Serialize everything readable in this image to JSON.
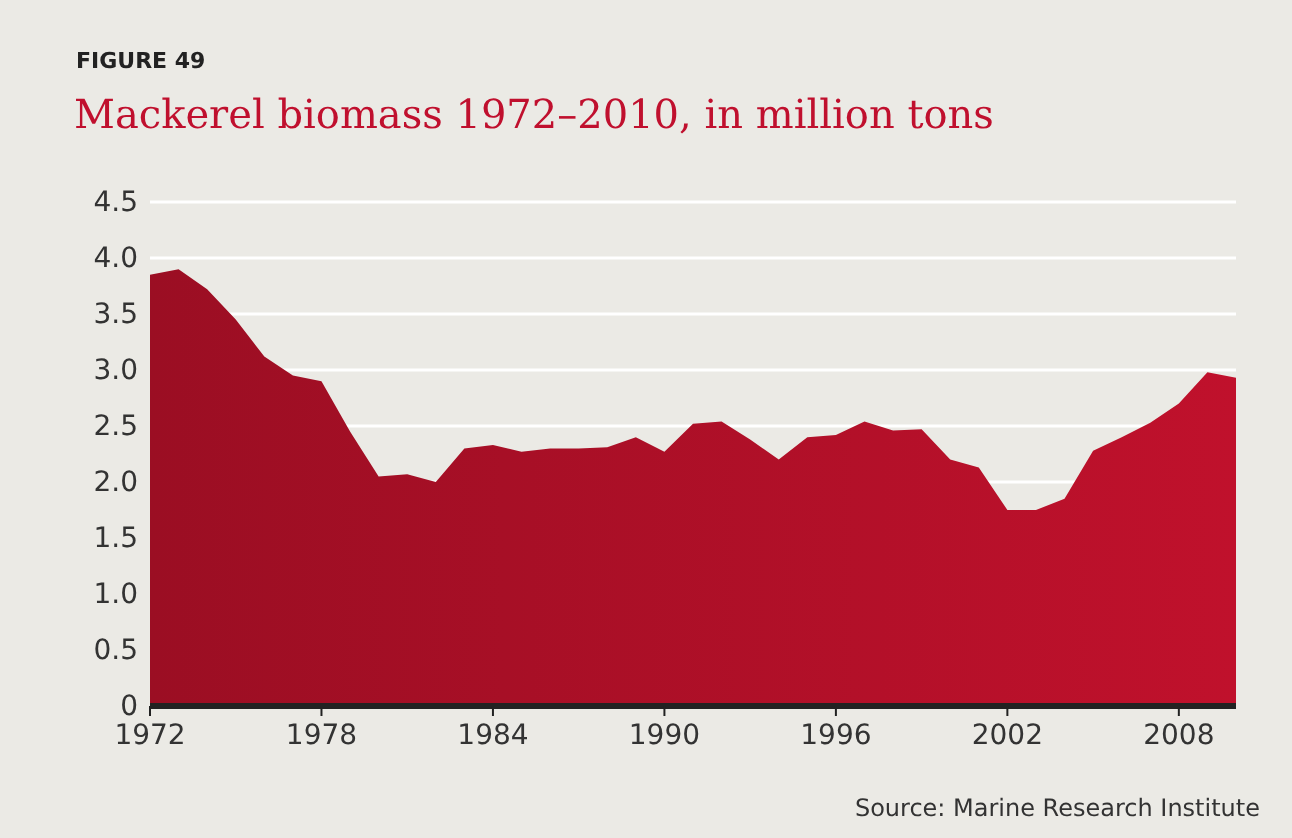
{
  "chart_data": {
    "type": "area",
    "subtitle": "FIGURE 49",
    "title": "Mackerel biomass 1972–2010, in million tons",
    "x": [
      1972,
      1973,
      1974,
      1975,
      1976,
      1977,
      1978,
      1979,
      1980,
      1981,
      1982,
      1983,
      1984,
      1985,
      1986,
      1987,
      1988,
      1989,
      1990,
      1991,
      1992,
      1993,
      1994,
      1995,
      1996,
      1997,
      1998,
      1999,
      2000,
      2001,
      2002,
      2003,
      2004,
      2005,
      2006,
      2007,
      2008,
      2009,
      2010
    ],
    "series": [
      {
        "color": "#b01028",
        "values": [
          3.85,
          3.9,
          3.72,
          3.45,
          3.12,
          2.95,
          2.9,
          2.45,
          2.05,
          2.07,
          2.0,
          2.3,
          2.33,
          2.27,
          2.3,
          2.3,
          2.31,
          2.4,
          2.27,
          2.52,
          2.54,
          2.38,
          2.2,
          2.4,
          2.42,
          2.54,
          2.46,
          2.47,
          2.2,
          2.13,
          1.75,
          1.75,
          1.85,
          2.28,
          2.4,
          2.53,
          2.7,
          2.98,
          2.93
        ]
      }
    ],
    "xlim": [
      1972,
      2010
    ],
    "xticks": [
      1972,
      1978,
      1984,
      1990,
      1996,
      2002,
      2008
    ],
    "ylim": [
      0,
      4.5
    ],
    "yticks": [
      {
        "value": 0,
        "label": "0"
      },
      {
        "value": 0.5,
        "label": "0.5"
      },
      {
        "value": 1,
        "label": "1.0"
      },
      {
        "value": 1.5,
        "label": "1.5"
      },
      {
        "value": 2,
        "label": "2.0"
      },
      {
        "value": 2.5,
        "label": "2.5"
      },
      {
        "value": 3,
        "label": "3.0"
      },
      {
        "value": 3.5,
        "label": "3.5"
      },
      {
        "value": 4,
        "label": "4.0"
      },
      {
        "value": 4.5,
        "label": "4.5"
      }
    ],
    "grid": "y",
    "annotations": [
      "Source: Marine Research Institute"
    ]
  }
}
